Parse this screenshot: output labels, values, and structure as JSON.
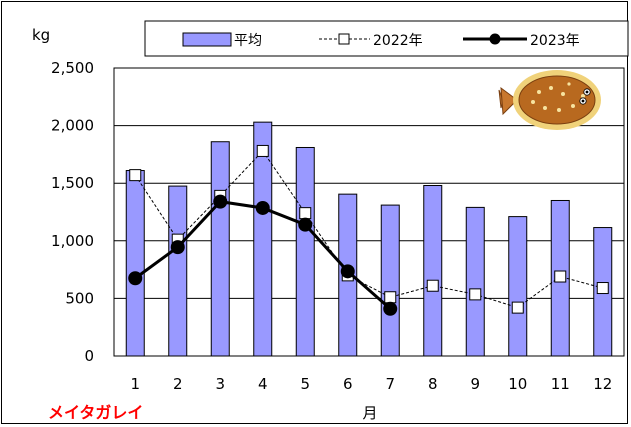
{
  "chart_data": {
    "type": "bar",
    "categories": [
      "1",
      "2",
      "3",
      "4",
      "5",
      "6",
      "7",
      "8",
      "9",
      "10",
      "11",
      "12"
    ],
    "series": [
      {
        "name": "平均",
        "kind": "bar",
        "color": "#9999ff",
        "values": [
          1610,
          1475,
          1860,
          2030,
          1810,
          1405,
          1310,
          1480,
          1290,
          1210,
          1350,
          1115
        ]
      },
      {
        "name": "2022年",
        "kind": "line",
        "marker": "open-square",
        "line_style": "dashed",
        "color": "#000000",
        "values": [
          1570,
          1010,
          1390,
          1780,
          1240,
          700,
          510,
          610,
          535,
          420,
          690,
          590
        ]
      },
      {
        "name": "2023年",
        "kind": "line",
        "marker": "filled-circle",
        "line_style": "solid",
        "color": "#000000",
        "values": [
          675,
          945,
          1340,
          1285,
          1140,
          735,
          410,
          null,
          null,
          null,
          null,
          null
        ]
      }
    ],
    "yticks": [
      "0",
      "500",
      "1,000",
      "1,500",
      "2,000",
      "2,500"
    ],
    "ylim": [
      0,
      2500
    ],
    "ylabel": "kg",
    "xlabel": "月",
    "grid": true,
    "legend_position": "top"
  },
  "species_label": "メイタガレイ",
  "fish_icon": "flounder-icon"
}
